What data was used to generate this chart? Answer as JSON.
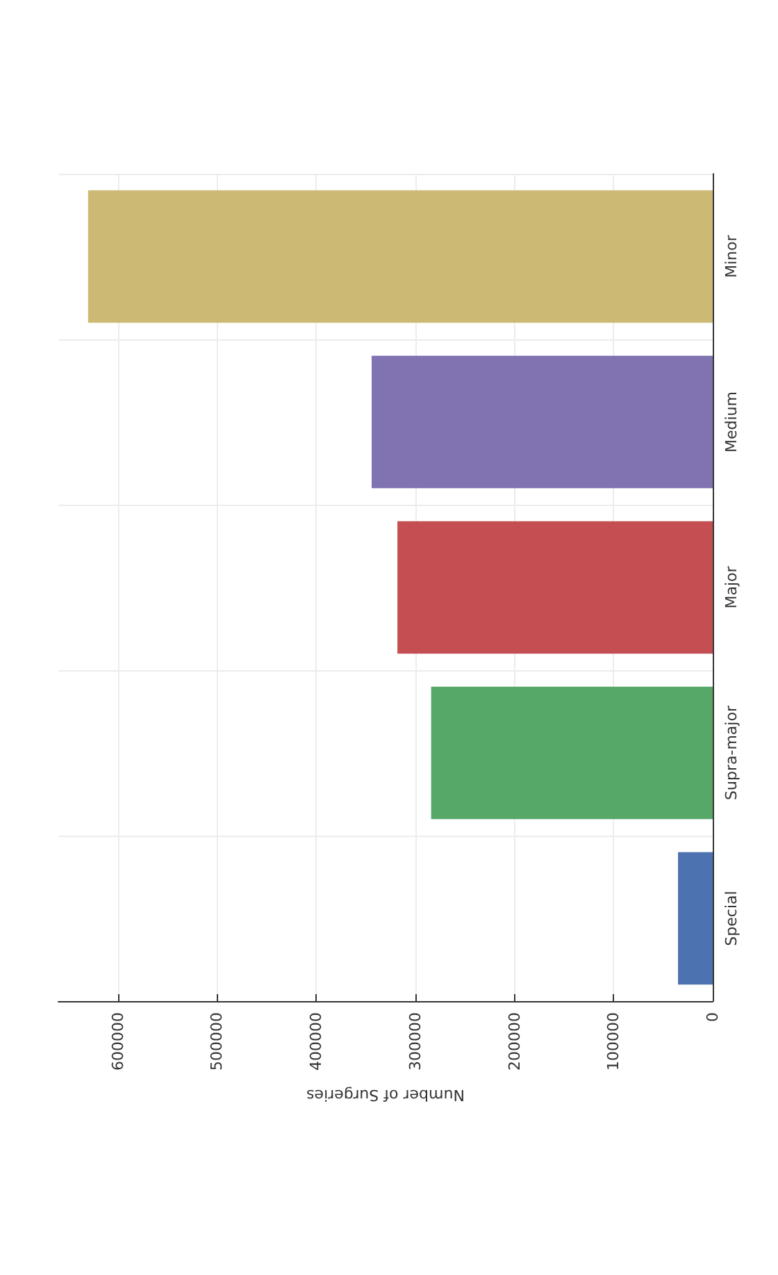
{
  "chart_data": {
    "type": "bar",
    "orientation": "horizontal",
    "xlabel": "Number of Surgeries",
    "categories": [
      "Minor",
      "Medium",
      "Major",
      "Supra-major",
      "Special"
    ],
    "values": [
      630000,
      344000,
      318000,
      284000,
      35000
    ],
    "colors": [
      "#ccb974",
      "#8172b2",
      "#c44e52",
      "#55a868",
      "#4c72b0"
    ],
    "xlim": [
      660000,
      0
    ],
    "xticks": [
      600000,
      500000,
      400000,
      300000,
      200000,
      100000,
      0
    ],
    "grid": true
  }
}
